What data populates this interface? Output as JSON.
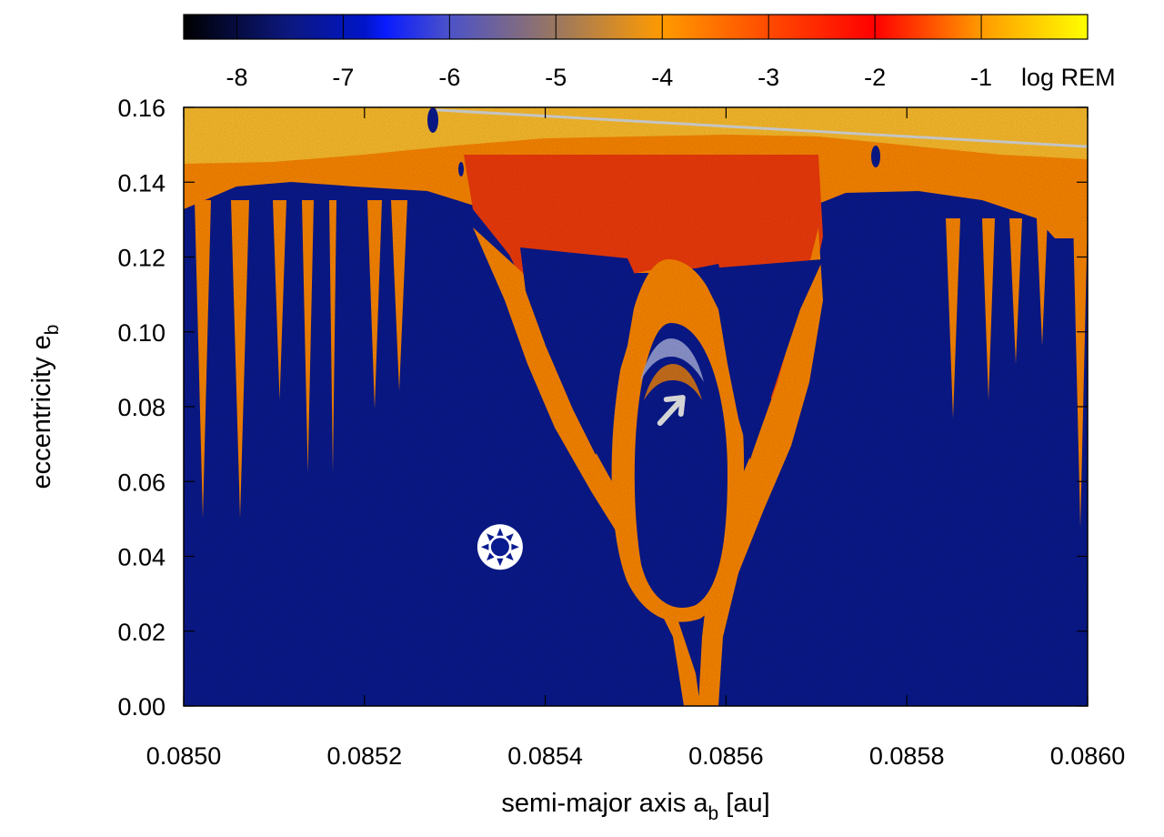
{
  "chart_data": {
    "type": "heatmap",
    "title": "",
    "xlabel": {
      "main": "semi-major axis a",
      "sub": "b",
      "unit": " [au]"
    },
    "ylabel": {
      "main": "eccentricity e",
      "sub": "b"
    },
    "xlim": [
      0.085,
      0.086
    ],
    "ylim": [
      0.0,
      0.16
    ],
    "x_ticks": [
      0.085,
      0.0852,
      0.0854,
      0.0856,
      0.0858,
      0.086
    ],
    "x_tick_labels": [
      "0.0850",
      "0.0852",
      "0.0854",
      "0.0856",
      "0.0858",
      "0.0860"
    ],
    "y_ticks": [
      0.0,
      0.02,
      0.04,
      0.06,
      0.08,
      0.1,
      0.12,
      0.14,
      0.16
    ],
    "y_tick_labels": [
      "0.00",
      "0.02",
      "0.04",
      "0.06",
      "0.08",
      "0.10",
      "0.12",
      "0.14",
      "0.16"
    ],
    "colorbar": {
      "label": "log REM",
      "range": [
        -8.5,
        0
      ],
      "ticks": [
        -8,
        -7,
        -6,
        -5,
        -4,
        -3,
        -2,
        -1
      ],
      "tick_labels": [
        "-8",
        "-7",
        "-6",
        "-5",
        "-4",
        "-3",
        "-2",
        "-1"
      ],
      "stops": [
        {
          "value": -8.5,
          "color": "#000000"
        },
        {
          "value": -7.5,
          "color": "#0c1880"
        },
        {
          "value": -6.8,
          "color": "#0015c8"
        },
        {
          "value": -6.6,
          "color": "#0a1cff"
        },
        {
          "value": -6.0,
          "color": "#4c52c8"
        },
        {
          "value": -5.0,
          "color": "#9a7760"
        },
        {
          "value": -4.0,
          "color": "#ff9a00"
        },
        {
          "value": -3.0,
          "color": "#ff4a00"
        },
        {
          "value": -2.0,
          "color": "#ff0000"
        },
        {
          "value": -1.0,
          "color": "#ff9a00"
        },
        {
          "value": 0.0,
          "color": "#ffff00"
        }
      ]
    },
    "colors": {
      "stable": "#0a1a8f",
      "chaotic_orange": "#ff8800",
      "chaotic_red": "#f23c0c",
      "chaotic_yellow": "#ffd23c",
      "ring_light": "#a8b0e0",
      "line_gray": "#c4c4c4"
    },
    "features": {
      "boundary_line": {
        "x": [
          0.08528,
          0.086
        ],
        "y": [
          0.1593,
          0.1495
        ]
      },
      "nominal_position": {
        "x": 0.08535,
        "y": 0.0425,
        "icon": "sun-symbol-icon"
      },
      "arrow": {
        "x": 0.08554,
        "y": 0.0795,
        "icon": "arrow-up-right-icon"
      }
    }
  }
}
